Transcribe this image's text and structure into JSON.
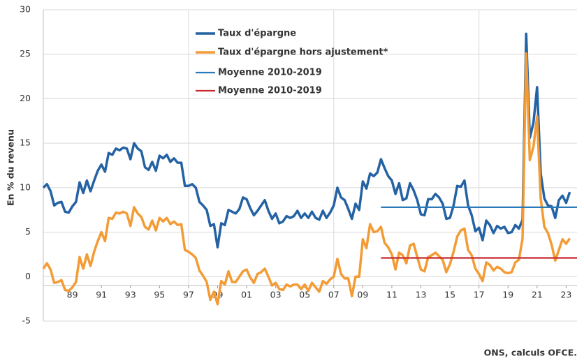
{
  "chart_data": {
    "type": "line",
    "y_label": "En % du revenu",
    "source": "ONS, calculs OFCE.",
    "xlim": [
      1987,
      2023.75
    ],
    "ylim": [
      -5,
      30
    ],
    "yticks": [
      -5,
      0,
      5,
      10,
      15,
      20,
      25,
      30
    ],
    "xticks": [
      {
        "value": 1989,
        "label": "89"
      },
      {
        "value": 1991,
        "label": "91"
      },
      {
        "value": 1993,
        "label": "93"
      },
      {
        "value": 1995,
        "label": "95"
      },
      {
        "value": 1997,
        "label": "97"
      },
      {
        "value": 1999,
        "label": "99"
      },
      {
        "value": 2001,
        "label": "01"
      },
      {
        "value": 2003,
        "label": "03"
      },
      {
        "value": 2005,
        "label": "05"
      },
      {
        "value": 2007,
        "label": "07"
      },
      {
        "value": 2009,
        "label": "09"
      },
      {
        "value": 2011,
        "label": "11"
      },
      {
        "value": 2013,
        "label": "13"
      },
      {
        "value": 2015,
        "label": "15"
      },
      {
        "value": 2017,
        "label": "17"
      },
      {
        "value": 2019,
        "label": "19"
      },
      {
        "value": 2021,
        "label": "21"
      },
      {
        "value": 2023,
        "label": "23"
      }
    ],
    "xgrid": [
      1997,
      2007,
      2017
    ],
    "grid": true,
    "x": [
      1987,
      1987.25,
      1987.5,
      1987.75,
      1988,
      1988.25,
      1988.5,
      1988.75,
      1989,
      1989.25,
      1989.5,
      1989.75,
      1990,
      1990.25,
      1990.5,
      1990.75,
      1991,
      1991.25,
      1991.5,
      1991.75,
      1992,
      1992.25,
      1992.5,
      1992.75,
      1993,
      1993.25,
      1993.5,
      1993.75,
      1994,
      1994.25,
      1994.5,
      1994.75,
      1995,
      1995.25,
      1995.5,
      1995.75,
      1996,
      1996.25,
      1996.5,
      1996.75,
      1997,
      1997.25,
      1997.5,
      1997.75,
      1998,
      1998.25,
      1998.5,
      1998.75,
      1999,
      1999.25,
      1999.5,
      1999.75,
      2000,
      2000.25,
      2000.5,
      2000.75,
      2001,
      2001.25,
      2001.5,
      2001.75,
      2002,
      2002.25,
      2002.5,
      2002.75,
      2003,
      2003.25,
      2003.5,
      2003.75,
      2004,
      2004.25,
      2004.5,
      2004.75,
      2005,
      2005.25,
      2005.5,
      2005.75,
      2006,
      2006.25,
      2006.5,
      2006.75,
      2007,
      2007.25,
      2007.5,
      2007.75,
      2008,
      2008.25,
      2008.5,
      2008.75,
      2009,
      2009.25,
      2009.5,
      2009.75,
      2010,
      2010.25,
      2010.5,
      2010.75,
      2011,
      2011.25,
      2011.5,
      2011.75,
      2012,
      2012.25,
      2012.5,
      2012.75,
      2013,
      2013.25,
      2013.5,
      2013.75,
      2014,
      2014.25,
      2014.5,
      2014.75,
      2015,
      2015.25,
      2015.5,
      2015.75,
      2016,
      2016.25,
      2016.5,
      2016.75,
      2017,
      2017.25,
      2017.5,
      2017.75,
      2018,
      2018.25,
      2018.5,
      2018.75,
      2019,
      2019.25,
      2019.5,
      2019.75,
      2020,
      2020.25,
      2020.5,
      2020.75,
      2021,
      2021.25,
      2021.5,
      2021.75,
      2022,
      2022.25,
      2022.5,
      2022.75,
      2023,
      2023.25
    ],
    "series": [
      {
        "name": "Taux d'épargne",
        "color": "#2462a3",
        "width": 3.5,
        "values": [
          10.0,
          10.4,
          9.6,
          8.0,
          8.3,
          8.4,
          7.3,
          7.2,
          7.9,
          8.4,
          10.6,
          9.4,
          10.8,
          9.6,
          10.8,
          11.9,
          12.6,
          11.8,
          13.9,
          13.7,
          14.4,
          14.2,
          14.5,
          14.4,
          13.2,
          15.0,
          14.4,
          14.1,
          12.3,
          12.0,
          12.9,
          11.9,
          13.6,
          13.3,
          13.7,
          12.9,
          13.3,
          12.8,
          12.8,
          10.2,
          10.2,
          10.4,
          10.0,
          8.4,
          8.0,
          7.5,
          5.7,
          5.9,
          3.3,
          6.0,
          5.8,
          7.5,
          7.3,
          7.1,
          7.6,
          8.9,
          8.7,
          7.7,
          6.9,
          7.4,
          8.0,
          8.6,
          7.4,
          6.5,
          7.1,
          6.0,
          6.2,
          6.8,
          6.6,
          6.8,
          7.4,
          6.6,
          7.1,
          6.6,
          7.3,
          6.6,
          6.4,
          7.4,
          6.6,
          7.2,
          8.0,
          10.0,
          8.9,
          8.6,
          7.6,
          6.5,
          8.2,
          7.5,
          10.7,
          9.9,
          11.6,
          11.3,
          11.7,
          13.2,
          12.2,
          11.3,
          10.8,
          9.3,
          10.5,
          8.6,
          8.8,
          10.5,
          9.7,
          8.6,
          7.0,
          6.9,
          8.7,
          8.7,
          9.3,
          8.9,
          8.2,
          6.5,
          6.6,
          8.0,
          10.2,
          10.1,
          10.8,
          8.0,
          6.9,
          5.1,
          5.5,
          4.1,
          6.3,
          5.8,
          4.9,
          5.7,
          5.4,
          5.6,
          4.9,
          5.0,
          5.8,
          5.4,
          6.4,
          27.3,
          15.6,
          17.3,
          21.3,
          11.6,
          8.8,
          8.0,
          7.9,
          6.6,
          8.6,
          9.1,
          8.3,
          9.5
        ]
      },
      {
        "name": "Taux d'épargne hors ajustement*",
        "color": "#f39b35",
        "width": 3.5,
        "values": [
          0.9,
          1.5,
          0.8,
          -0.7,
          -0.6,
          -0.4,
          -1.5,
          -1.6,
          -1.2,
          -0.6,
          2.2,
          0.9,
          2.5,
          1.2,
          2.8,
          4.0,
          5.0,
          4.0,
          6.6,
          6.5,
          7.2,
          7.1,
          7.3,
          7.1,
          5.7,
          7.8,
          7.1,
          6.7,
          5.6,
          5.3,
          6.3,
          5.2,
          6.6,
          6.2,
          6.6,
          5.9,
          6.2,
          5.8,
          5.9,
          3.0,
          2.8,
          2.5,
          2.1,
          0.7,
          0.1,
          -0.6,
          -2.6,
          -1.7,
          -3.1,
          -0.5,
          -0.9,
          0.6,
          -0.6,
          -0.6,
          0.0,
          0.6,
          0.8,
          -0.1,
          -0.7,
          0.3,
          0.5,
          0.9,
          0.0,
          -1.0,
          -0.7,
          -1.4,
          -1.5,
          -0.9,
          -1.1,
          -0.9,
          -0.9,
          -1.4,
          -0.9,
          -1.6,
          -0.7,
          -1.2,
          -1.7,
          -0.5,
          -0.8,
          -0.3,
          0.0,
          2.0,
          0.3,
          -0.2,
          -0.2,
          -2.2,
          0.0,
          0.0,
          4.2,
          3.2,
          5.9,
          5.0,
          5.1,
          5.6,
          3.8,
          3.3,
          2.5,
          0.8,
          2.7,
          2.4,
          1.5,
          3.5,
          3.7,
          2.2,
          0.8,
          0.6,
          2.2,
          2.4,
          2.7,
          2.3,
          1.9,
          0.5,
          1.4,
          2.8,
          4.5,
          5.2,
          5.4,
          3.0,
          2.4,
          0.9,
          0.3,
          -0.5,
          1.6,
          1.3,
          0.7,
          1.1,
          0.9,
          0.5,
          0.4,
          0.5,
          1.6,
          1.9,
          4.3,
          25.1,
          13.1,
          14.6,
          18.0,
          8.8,
          5.6,
          4.9,
          3.6,
          1.8,
          3.0,
          4.2,
          3.7,
          4.3
        ]
      },
      {
        "name": "Moyenne 2010-2019",
        "color": "#2a7ab9",
        "width": 2.2,
        "x": [
          2010.25,
          2023.75
        ],
        "values": [
          7.8,
          7.8
        ]
      },
      {
        "name": "Moyenne 2010-2019",
        "color": "#c8282e",
        "width": 2.2,
        "x": [
          2010.25,
          2023.75
        ],
        "values": [
          2.1,
          2.1
        ]
      }
    ]
  }
}
